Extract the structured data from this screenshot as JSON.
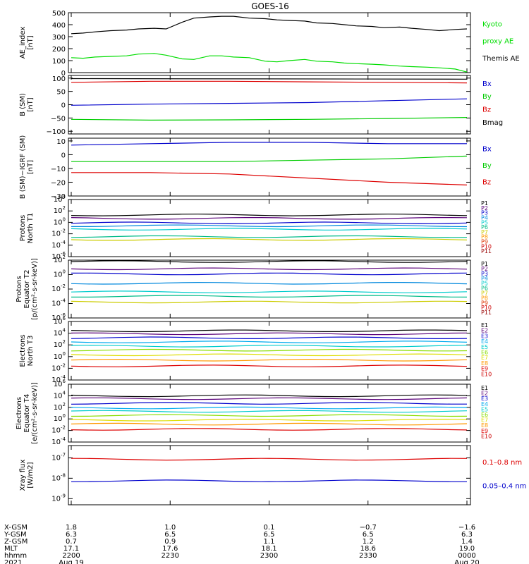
{
  "title": "GOES-16",
  "chart_data": [
    {
      "type": "line",
      "ylabel": [
        "AE_index",
        "[nT]"
      ],
      "ylim": [
        0,
        500
      ],
      "yticks": [
        "0",
        "100",
        "200",
        "300",
        "400",
        "500"
      ],
      "legend": [
        {
          "name": "Kyoto",
          "color": "#00dd00"
        },
        {
          "name": "proxy AE",
          "color": "#00dd00"
        },
        {
          "name": "Themis AE",
          "color": "#000000"
        }
      ],
      "series": [
        {
          "name": "Themis AE",
          "color": "#000000",
          "x": [
            0,
            3,
            6,
            10,
            14,
            17,
            21,
            24,
            28,
            31,
            35,
            38,
            41,
            45,
            49,
            52,
            55,
            59,
            62,
            66,
            69,
            72,
            76,
            79,
            83,
            86,
            90,
            93,
            97,
            100
          ],
          "values": [
            325,
            330,
            340,
            350,
            355,
            365,
            370,
            365,
            420,
            455,
            465,
            470,
            470,
            455,
            450,
            440,
            435,
            430,
            415,
            410,
            400,
            390,
            385,
            375,
            380,
            370,
            360,
            350,
            360,
            365
          ]
        },
        {
          "name": "Kyoto proxy AE",
          "color": "#00dd00",
          "x": [
            0,
            3,
            6,
            10,
            14,
            17,
            21,
            24,
            28,
            31,
            35,
            38,
            41,
            45,
            49,
            52,
            55,
            59,
            62,
            66,
            69,
            72,
            76,
            79,
            83,
            86,
            90,
            93,
            97,
            100
          ],
          "values": [
            125,
            120,
            130,
            135,
            140,
            155,
            160,
            145,
            115,
            110,
            140,
            140,
            130,
            125,
            95,
            90,
            100,
            110,
            95,
            90,
            80,
            75,
            70,
            65,
            55,
            50,
            45,
            40,
            30,
            5
          ]
        }
      ]
    },
    {
      "type": "line",
      "ylabel": [
        "B (SM)",
        "[nT]"
      ],
      "ylim": [
        -110,
        110
      ],
      "yticks": [
        "−100",
        "−50",
        "0",
        "50",
        "100"
      ],
      "ytick_values": [
        -100,
        -50,
        0,
        50,
        100
      ],
      "legend": [
        {
          "name": "Bx",
          "color": "#0000cc"
        },
        {
          "name": "By",
          "color": "#00cc00"
        },
        {
          "name": "Bz",
          "color": "#dd0000"
        },
        {
          "name": "Bmag",
          "color": "#000000"
        }
      ],
      "series": [
        {
          "name": "Bmag",
          "color": "#000000",
          "x": [
            0,
            100
          ],
          "values": [
            98,
            96
          ]
        },
        {
          "name": "Bz",
          "color": "#dd0000",
          "x": [
            0,
            20,
            40,
            60,
            80,
            100
          ],
          "values": [
            84,
            88,
            88,
            86,
            84,
            82
          ]
        },
        {
          "name": "Bx",
          "color": "#0000cc",
          "x": [
            0,
            20,
            40,
            60,
            80,
            100
          ],
          "values": [
            -2,
            2,
            5,
            8,
            15,
            22
          ]
        },
        {
          "name": "By",
          "color": "#00cc00",
          "x": [
            0,
            20,
            40,
            60,
            80,
            100
          ],
          "values": [
            -55,
            -58,
            -57,
            -55,
            -52,
            -48
          ]
        }
      ]
    },
    {
      "type": "line",
      "ylabel": [
        "B (SM)−IGRF (SM)",
        "[nT]"
      ],
      "ylim": [
        -30,
        12
      ],
      "yticks": [
        "−30",
        "−20",
        "−10",
        "0",
        "10"
      ],
      "ytick_values": [
        -30,
        -20,
        -10,
        0,
        10
      ],
      "legend": [
        {
          "name": "Bx",
          "color": "#0000cc"
        },
        {
          "name": "By",
          "color": "#00cc00"
        },
        {
          "name": "Bz",
          "color": "#dd0000"
        }
      ],
      "series": [
        {
          "name": "Bx",
          "color": "#0000cc",
          "x": [
            0,
            20,
            40,
            60,
            80,
            100
          ],
          "values": [
            7,
            8,
            9,
            9,
            8,
            8
          ]
        },
        {
          "name": "By",
          "color": "#00cc00",
          "x": [
            0,
            20,
            40,
            60,
            80,
            100
          ],
          "values": [
            -5,
            -5,
            -5,
            -4,
            -3,
            -1
          ]
        },
        {
          "name": "Bz",
          "color": "#dd0000",
          "x": [
            0,
            20,
            40,
            60,
            80,
            100
          ],
          "values": [
            -13,
            -13,
            -14,
            -17,
            -20,
            -22
          ]
        }
      ]
    },
    {
      "type": "line",
      "log": true,
      "ylabel": [
        "Protons",
        "North T1"
      ],
      "ylim_exp": [
        -6,
        4
      ],
      "ytick_exp": [
        -6,
        -4,
        -2,
        0,
        2,
        4
      ],
      "legend": [
        {
          "name": "P1",
          "color": "#000000"
        },
        {
          "name": "P2",
          "color": "#5a0079"
        },
        {
          "name": "P3",
          "color": "#0000cc"
        },
        {
          "name": "P4",
          "color": "#0088dd"
        },
        {
          "name": "P5",
          "color": "#00cccc"
        },
        {
          "name": "P6",
          "color": "#00bb88"
        },
        {
          "name": "P7",
          "color": "#cccc00"
        },
        {
          "name": "P8",
          "color": "#ff9900"
        },
        {
          "name": "P9",
          "color": "#dd3300"
        },
        {
          "name": "P10",
          "color": "#cc0000"
        },
        {
          "name": "P11",
          "color": "#990000"
        }
      ],
      "series": [
        {
          "name": "P1",
          "color": "#000000",
          "exp": 1.3
        },
        {
          "name": "P2",
          "color": "#5a0079",
          "exp": 0.7
        },
        {
          "name": "P3",
          "color": "#0000cc",
          "exp": -0.1
        },
        {
          "name": "P4",
          "color": "#0088dd",
          "exp": -0.6
        },
        {
          "name": "P5",
          "color": "#00cccc",
          "exp": -1.2
        },
        {
          "name": "P6",
          "color": "#00bb88",
          "exp": -2.5
        },
        {
          "name": "P7",
          "color": "#cccc00",
          "exp": -3.0
        }
      ]
    },
    {
      "type": "line",
      "log": true,
      "ylabel": [
        "Protons",
        "Equator T2",
        "[p/(cm²-s-sr-keV)]"
      ],
      "ylim_exp": [
        -6,
        2
      ],
      "ytick_exp": [
        -6,
        -4,
        -2,
        0,
        2
      ],
      "legend": [
        {
          "name": "P1",
          "color": "#000000"
        },
        {
          "name": "P2",
          "color": "#5a0079"
        },
        {
          "name": "P3",
          "color": "#0000cc"
        },
        {
          "name": "P4",
          "color": "#0088dd"
        },
        {
          "name": "P5",
          "color": "#00cccc"
        },
        {
          "name": "P6",
          "color": "#00bb88"
        },
        {
          "name": "P7",
          "color": "#cccc00"
        },
        {
          "name": "P8",
          "color": "#ff9900"
        },
        {
          "name": "P9",
          "color": "#dd3300"
        },
        {
          "name": "P10",
          "color": "#cc0000"
        },
        {
          "name": "P11",
          "color": "#990000"
        }
      ],
      "series": [
        {
          "name": "P1",
          "color": "#000000",
          "exp": 1.8
        },
        {
          "name": "P2",
          "color": "#5a0079",
          "exp": 0.8
        },
        {
          "name": "P3",
          "color": "#0000cc",
          "exp": 0.1
        },
        {
          "name": "P4",
          "color": "#0088dd",
          "exp": -1.2
        },
        {
          "name": "P5",
          "color": "#00cccc",
          "exp": -2.4
        },
        {
          "name": "P6",
          "color": "#00bb88",
          "exp": -3.0
        },
        {
          "name": "P7",
          "color": "#cccc00",
          "exp": -3.8
        }
      ]
    },
    {
      "type": "line",
      "log": true,
      "ylabel": [
        "Electrons",
        "North T3"
      ],
      "ylim_exp": [
        -4,
        6
      ],
      "ytick_exp": [
        -4,
        -2,
        0,
        2,
        4,
        6
      ],
      "legend": [
        {
          "name": "E1",
          "color": "#000000"
        },
        {
          "name": "E2",
          "color": "#5a0079"
        },
        {
          "name": "E3",
          "color": "#0000cc"
        },
        {
          "name": "E4",
          "color": "#00aaee"
        },
        {
          "name": "E5",
          "color": "#00cccc"
        },
        {
          "name": "E6",
          "color": "#88dd00"
        },
        {
          "name": "E7",
          "color": "#dddd00"
        },
        {
          "name": "E8",
          "color": "#ff9900"
        },
        {
          "name": "E9",
          "color": "#dd0000"
        },
        {
          "name": "E10",
          "color": "#cc0000"
        }
      ],
      "series": [
        {
          "name": "E1",
          "color": "#000000",
          "exp": 4.4
        },
        {
          "name": "E2",
          "color": "#5a0079",
          "exp": 3.9
        },
        {
          "name": "E3",
          "color": "#0000cc",
          "exp": 3.2
        },
        {
          "name": "E4",
          "color": "#00aaee",
          "exp": 2.5
        },
        {
          "name": "E5",
          "color": "#00cccc",
          "exp": 1.8
        },
        {
          "name": "E6",
          "color": "#88dd00",
          "exp": 1.1
        },
        {
          "name": "E7",
          "color": "#dddd00",
          "exp": 0.3
        },
        {
          "name": "E8",
          "color": "#ff9900",
          "exp": -0.6
        },
        {
          "name": "E9",
          "color": "#dd0000",
          "exp": -1.6
        }
      ]
    },
    {
      "type": "line",
      "log": true,
      "ylabel": [
        "Electrons",
        "Equator T4",
        "[e/(cm²-s-sr-keV)]"
      ],
      "ylim_exp": [
        -4,
        6
      ],
      "ytick_exp": [
        -4,
        -2,
        0,
        2,
        4,
        6
      ],
      "legend": [
        {
          "name": "E1",
          "color": "#000000"
        },
        {
          "name": "E2",
          "color": "#5a0079"
        },
        {
          "name": "E3",
          "color": "#0000cc"
        },
        {
          "name": "E4",
          "color": "#00aaee"
        },
        {
          "name": "E5",
          "color": "#00cccc"
        },
        {
          "name": "E6",
          "color": "#88dd00"
        },
        {
          "name": "E7",
          "color": "#dddd00"
        },
        {
          "name": "E8",
          "color": "#ff9900"
        },
        {
          "name": "E9",
          "color": "#dd0000"
        },
        {
          "name": "E10",
          "color": "#cc0000"
        }
      ],
      "series": [
        {
          "name": "E1",
          "color": "#000000",
          "exp": 4.0
        },
        {
          "name": "E2",
          "color": "#5a0079",
          "exp": 3.5
        },
        {
          "name": "E3",
          "color": "#0000cc",
          "exp": 2.7
        },
        {
          "name": "E4",
          "color": "#00aaee",
          "exp": 1.9
        },
        {
          "name": "E5",
          "color": "#00cccc",
          "exp": 1.3
        },
        {
          "name": "E6",
          "color": "#88dd00",
          "exp": 0.6
        },
        {
          "name": "E7",
          "color": "#dddd00",
          "exp": -0.2
        },
        {
          "name": "E8",
          "color": "#ff9900",
          "exp": -0.9
        },
        {
          "name": "E9",
          "color": "#dd0000",
          "exp": -1.8
        }
      ]
    },
    {
      "type": "line",
      "log": true,
      "ylabel": [
        "Xray flux",
        "[W/m2]"
      ],
      "ylim_exp": [
        -9.3,
        -6.4
      ],
      "ytick_exp": [
        -9,
        -8,
        -7
      ],
      "legend": [
        {
          "name": "0.1–0.8 nm",
          "color": "#dd0000"
        },
        {
          "name": "0.05–0.4 nm",
          "color": "#0000cc"
        }
      ],
      "series": [
        {
          "name": "0.1–0.8 nm",
          "color": "#dd0000",
          "exp": -7.07
        },
        {
          "name": "0.05–0.4 nm",
          "color": "#0000cc",
          "exp": -8.13
        }
      ]
    }
  ],
  "bottom_axis": {
    "row_labels": [
      "X-GSM",
      "Y-GSM",
      "Z-GSM",
      "MLT",
      "hhmm",
      "2021"
    ],
    "columns": [
      {
        "values": [
          "1.8",
          "6.3",
          "0.7",
          "17.1",
          "2200",
          "Aug 19"
        ]
      },
      {
        "values": [
          "1.0",
          "6.5",
          "0.9",
          "17.6",
          "2230",
          ""
        ]
      },
      {
        "values": [
          "0.1",
          "6.5",
          "1.1",
          "18.1",
          "2300",
          ""
        ]
      },
      {
        "values": [
          "−0.7",
          "6.5",
          "1.2",
          "18.6",
          "2330",
          ""
        ]
      },
      {
        "values": [
          "−1.6",
          "6.3",
          "1.4",
          "19.0",
          "0000",
          "Aug 20"
        ]
      }
    ]
  }
}
